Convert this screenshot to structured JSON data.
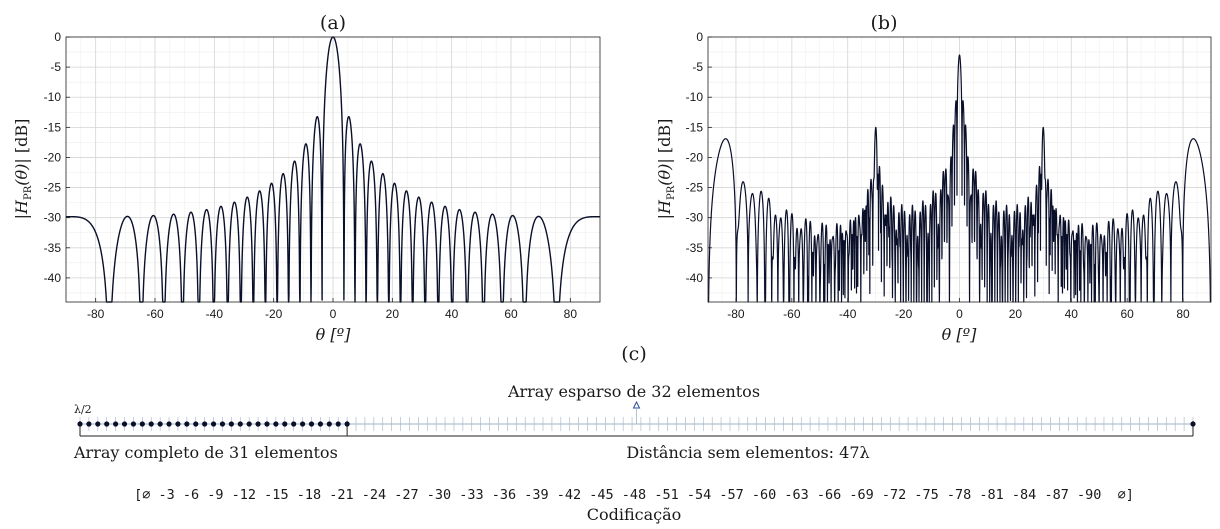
{
  "chart_data": [
    {
      "type": "line",
      "panel_label": "(a)",
      "xlabel": "θ [º]",
      "ylabel_parts": {
        "open": "|",
        "symbol": "H",
        "subscript": "PR",
        "arg": "(θ)|",
        "unit": " [dB]"
      },
      "xlim": [
        -90,
        90
      ],
      "ylim": [
        -44,
        0
      ],
      "xticks": [
        -80,
        -60,
        -40,
        -20,
        0,
        20,
        40,
        60,
        80
      ],
      "yticks": [
        0,
        -5,
        -10,
        -15,
        -20,
        -25,
        -30,
        -35,
        -40
      ],
      "grid": true,
      "series": [
        {
          "model": "uniform_array_pattern",
          "elements": 31,
          "spacing_wavelengths": 0.5,
          "color": "#0a0f2a"
        }
      ]
    },
    {
      "type": "line",
      "panel_label": "(b)",
      "xlabel": "θ [º]",
      "ylabel_parts": {
        "open": "|",
        "symbol": "H",
        "subscript": "PR",
        "arg": "(θ)|",
        "unit": " [dB]"
      },
      "xlim": [
        -90,
        90
      ],
      "ylim": [
        -44,
        0
      ],
      "xticks": [
        -80,
        -60,
        -40,
        -20,
        0,
        20,
        40,
        60,
        80
      ],
      "yticks": [
        0,
        -5,
        -10,
        -15,
        -20,
        -25,
        -30,
        -35,
        -40
      ],
      "grid": true,
      "series": [
        {
          "model": "sparse_array_pattern",
          "elements": 32,
          "spacing_wavelengths": 0.5,
          "color": "#0a0f2a"
        }
      ]
    },
    {
      "type": "diagram",
      "panel_label": "(c)",
      "title": "Array esparso de 32 elementos",
      "spacing_label": "λ/2",
      "grid_positions": 126,
      "element_positions": [
        0,
        1,
        2,
        3,
        4,
        5,
        6,
        7,
        8,
        9,
        10,
        11,
        12,
        13,
        14,
        15,
        16,
        17,
        18,
        19,
        20,
        21,
        22,
        23,
        24,
        25,
        26,
        27,
        28,
        29,
        30,
        125
      ],
      "marker_position": 62.5,
      "left_label": "Array completo de 31 elementos",
      "right_label": "Distância sem elementos: 47λ",
      "codification_label": "Codificação",
      "codification": "[∅ -3 -6 -9 -12 -15 -18 -21 -24 -27 -30 -33 -36 -39 -42 -45 -48 -51 -54 -57 -60 -63 -66 -69 -72 -75 -78 -81 -84 -87 -90  ∅]",
      "colors": {
        "element": "#0a0f2a",
        "grid": "#9fb3c8",
        "marker": "#2b4d9c"
      }
    }
  ]
}
